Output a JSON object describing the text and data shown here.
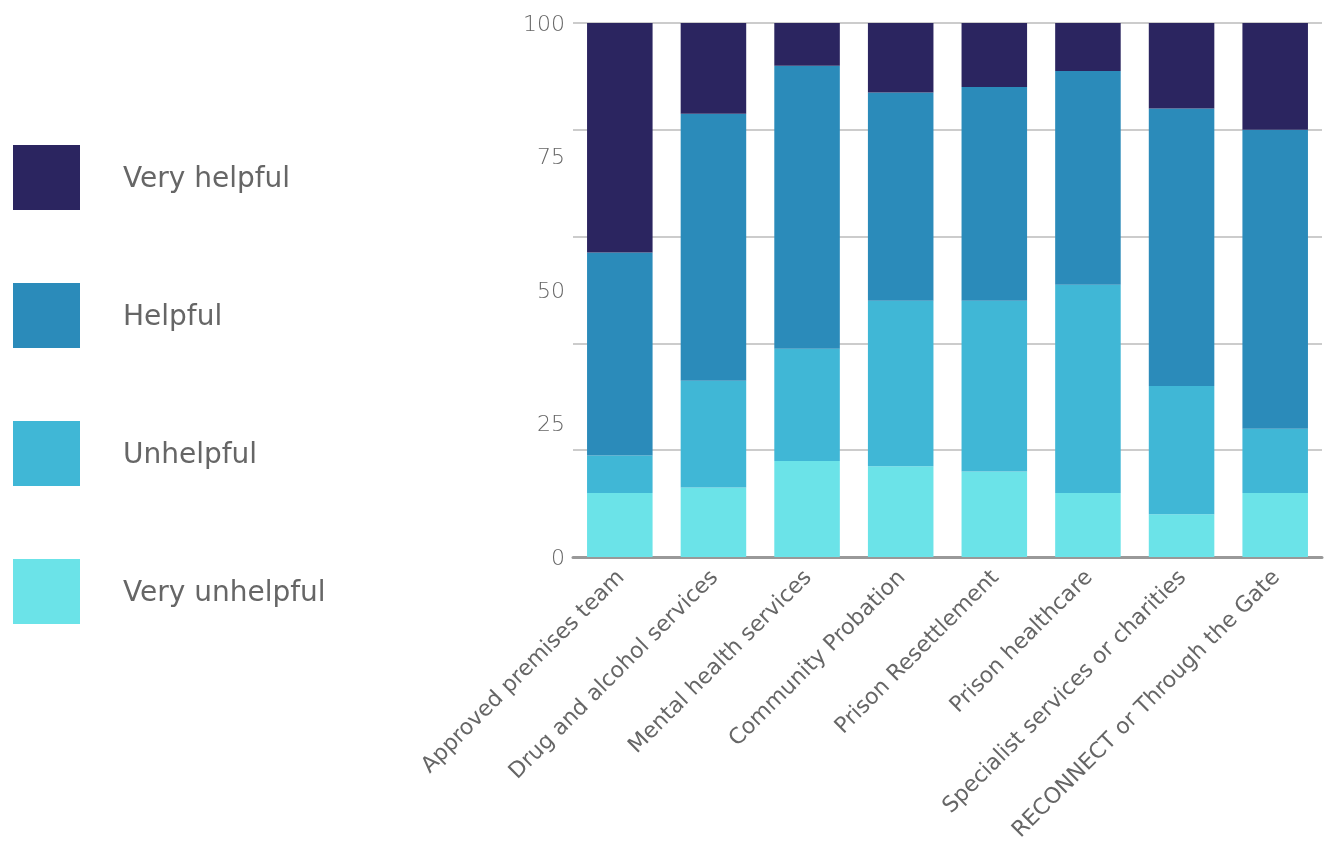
{
  "chart_data": {
    "type": "bar",
    "stacked": true,
    "categories": [
      "Approved premises team",
      "Drug and alcohol services",
      "Mental health services",
      "Community Probation",
      "Prison Resettlement",
      "Prison healthcare",
      "Specialist services or charities",
      "RECONNECT or Through the Gate"
    ],
    "series": [
      {
        "name": "Very unhelpful",
        "color": "#6be3e8",
        "values": [
          12,
          13,
          18,
          17,
          16,
          12,
          8,
          12
        ]
      },
      {
        "name": "Unhelpful",
        "color": "#40b7d6",
        "values": [
          7,
          20,
          21,
          31,
          32,
          39,
          24,
          12
        ]
      },
      {
        "name": "Helpful",
        "color": "#2b8bba",
        "values": [
          38,
          50,
          53,
          39,
          40,
          40,
          52,
          56
        ]
      },
      {
        "name": "Very helpful",
        "color": "#2b2560",
        "values": [
          43,
          17,
          8,
          13,
          12,
          9,
          16,
          20
        ]
      }
    ],
    "ylim": [
      0,
      100
    ],
    "yticks": [
      0,
      25,
      50,
      75,
      100
    ],
    "grid": "y",
    "legend": "left"
  }
}
